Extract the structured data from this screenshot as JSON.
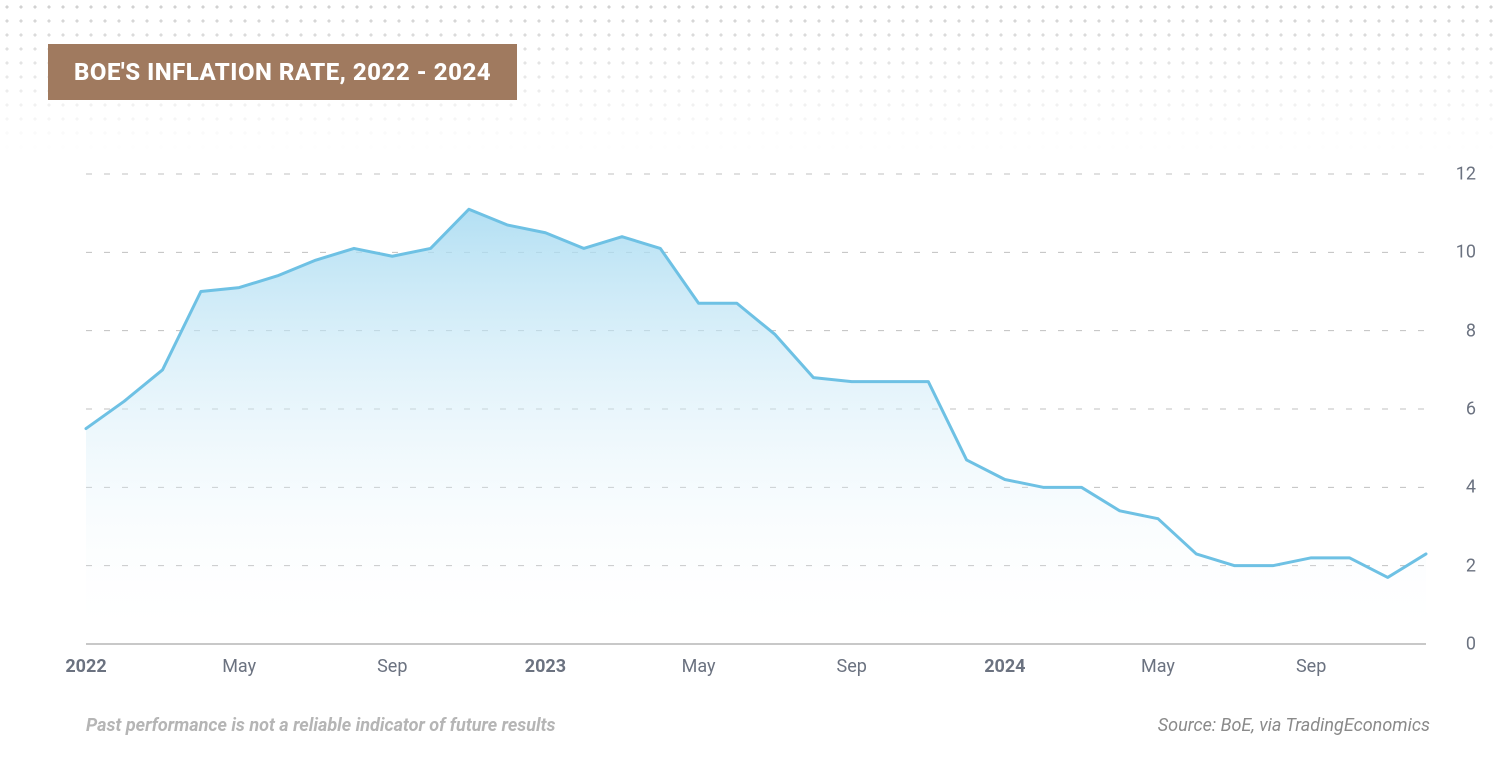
{
  "title": "BOE'S INFLATION RATE, 2022 - 2024",
  "disclaimer": "Past performance is not a reliable indicator of future results",
  "source": "Source: BoE, via TradingEconomics",
  "chart": {
    "type": "area",
    "background_color": "#ffffff",
    "title_bg": "#a07a5f",
    "title_color": "#ffffff",
    "title_fontsize": 24,
    "grid_color": "#c0c0c0",
    "grid_dash": "6 12",
    "baseline_color": "#b5b5b5",
    "line_color": "#6ec1e4",
    "line_width": 3,
    "area_gradient_top": "#a6daf1",
    "area_gradient_bottom": "#ffffff",
    "label_color": "#6b7280",
    "label_fontsize": 18,
    "ylim": [
      0,
      12
    ],
    "ytick_step": 2,
    "yticks": [
      {
        "value": 0,
        "label": "0"
      },
      {
        "value": 2,
        "label": "2"
      },
      {
        "value": 4,
        "label": "4"
      },
      {
        "value": 6,
        "label": "6"
      },
      {
        "value": 8,
        "label": "8"
      },
      {
        "value": 10,
        "label": "10"
      },
      {
        "value": 12,
        "label": "12"
      }
    ],
    "xticks": [
      {
        "index": 0,
        "label": "2022",
        "major": true
      },
      {
        "index": 4,
        "label": "May",
        "major": false
      },
      {
        "index": 8,
        "label": "Sep",
        "major": false
      },
      {
        "index": 12,
        "label": "2023",
        "major": true
      },
      {
        "index": 16,
        "label": "May",
        "major": false
      },
      {
        "index": 20,
        "label": "Sep",
        "major": false
      },
      {
        "index": 24,
        "label": "2024",
        "major": true
      },
      {
        "index": 28,
        "label": "May",
        "major": false
      },
      {
        "index": 32,
        "label": "Sep",
        "major": false
      }
    ],
    "series": {
      "values": [
        5.5,
        6.2,
        7.0,
        9.0,
        9.1,
        9.4,
        9.8,
        10.1,
        9.9,
        10.1,
        11.1,
        10.7,
        10.5,
        10.1,
        10.4,
        10.1,
        8.7,
        8.7,
        7.9,
        6.8,
        6.7,
        6.7,
        6.7,
        4.7,
        4.2,
        4.0,
        4.0,
        3.4,
        3.2,
        2.3,
        2.0,
        2.0,
        2.2,
        2.2,
        1.7,
        2.3
      ]
    }
  }
}
